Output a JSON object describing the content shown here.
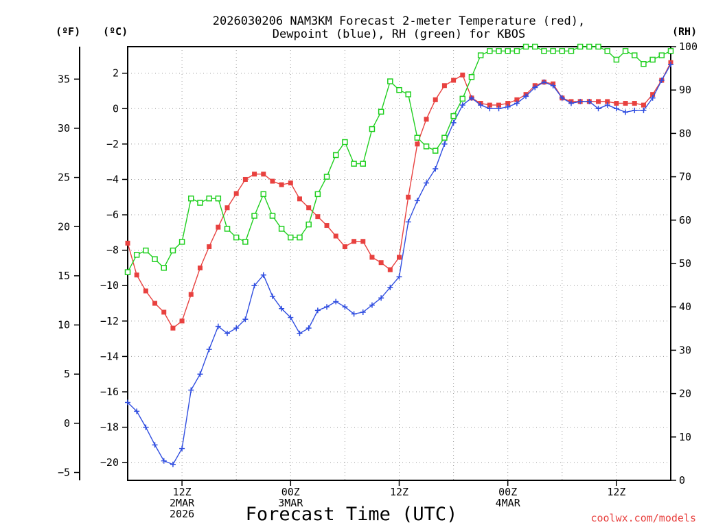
{
  "chart_data": {
    "type": "line",
    "title_line1": "2026030206 NAM3KM Forecast 2-meter Temperature (red),",
    "title_line2": "Dewpoint (blue), RH (green) for KBOS",
    "xlabel": "Forecast Time (UTC)",
    "credit": "coolwx.com/models",
    "units": {
      "fahrenheit": "(ºF)",
      "celsius": "(ºC)",
      "rh": "(RH)"
    },
    "x_range_hours": [
      6,
      66
    ],
    "c_range": [
      -21,
      3.5
    ],
    "rh_range": [
      0,
      100
    ],
    "c_ticks": [
      "2",
      "0",
      "−2",
      "−4",
      "−6",
      "−8",
      "−10",
      "−12",
      "−14",
      "−16",
      "−18",
      "−20"
    ],
    "c_tick_values": [
      2,
      0,
      -2,
      -4,
      -6,
      -8,
      -10,
      -12,
      -14,
      -16,
      -18,
      -20
    ],
    "f_ticks": [
      "35",
      "30",
      "25",
      "20",
      "15",
      "10",
      "5",
      "0",
      "−5"
    ],
    "f_tick_values": [
      35,
      30,
      25,
      20,
      15,
      10,
      5,
      0,
      -5
    ],
    "rh_ticks": [
      "100",
      "90",
      "80",
      "70",
      "60",
      "50",
      "40",
      "30",
      "20",
      "10",
      "0"
    ],
    "rh_tick_values": [
      100,
      90,
      80,
      70,
      60,
      50,
      40,
      30,
      20,
      10,
      0
    ],
    "x_ticks": [
      {
        "hour": 12,
        "lines": [
          "12Z",
          "2MAR",
          "2026"
        ]
      },
      {
        "hour": 24,
        "lines": [
          "00Z"
        ]
      },
      {
        "hour": 24,
        "lines": [
          "",
          "3MAR"
        ]
      },
      {
        "hour": 36,
        "lines": [
          "12Z"
        ]
      },
      {
        "hour": 48,
        "lines": [
          "00Z",
          "4MAR"
        ]
      },
      {
        "hour": 60,
        "lines": [
          "12Z"
        ]
      }
    ],
    "series": [
      {
        "name": "2-meter Temperature",
        "color": "#e8413f",
        "marker": "filled-square",
        "axis": "celsius",
        "values": [
          -7.6,
          -9.4,
          -10.3,
          -11.0,
          -11.5,
          -12.4,
          -12.0,
          -10.5,
          -9.0,
          -7.8,
          -6.7,
          -5.6,
          -4.8,
          -4.0,
          -3.7,
          -3.7,
          -4.1,
          -4.3,
          -4.2,
          -5.1,
          -5.6,
          -6.1,
          -6.6,
          -7.2,
          -7.8,
          -7.5,
          -7.5,
          -8.4,
          -8.7,
          -9.1,
          -8.4,
          -5.0,
          -2.0,
          -0.6,
          0.5,
          1.3,
          1.6,
          1.9,
          0.6,
          0.3,
          0.2,
          0.2,
          0.3,
          0.5,
          0.8,
          1.3,
          1.5,
          1.4,
          0.6,
          0.4,
          0.4,
          0.4,
          0.4,
          0.4,
          0.3,
          0.3,
          0.3,
          0.2,
          0.8,
          1.6,
          2.6
        ]
      },
      {
        "name": "Dewpoint",
        "color": "#2f4de0",
        "marker": "plus",
        "axis": "celsius",
        "values": [
          -16.6,
          -17.1,
          -18.0,
          -19.0,
          -19.9,
          -20.1,
          -19.2,
          -15.9,
          -15.0,
          -13.6,
          -12.3,
          -12.7,
          -12.4,
          -11.9,
          -10.0,
          -9.4,
          -10.6,
          -11.3,
          -11.8,
          -12.7,
          -12.4,
          -11.4,
          -11.2,
          -10.9,
          -11.2,
          -11.6,
          -11.5,
          -11.1,
          -10.7,
          -10.1,
          -9.5,
          -6.4,
          -5.2,
          -4.2,
          -3.4,
          -2.0,
          -0.8,
          0.2,
          0.6,
          0.2,
          0.0,
          0.0,
          0.1,
          0.3,
          0.7,
          1.2,
          1.5,
          1.3,
          0.6,
          0.3,
          0.4,
          0.4,
          0.0,
          0.2,
          0.0,
          -0.2,
          -0.1,
          -0.1,
          0.6,
          1.6,
          2.5
        ]
      },
      {
        "name": "RH",
        "color": "#1fcf1f",
        "marker": "open-square",
        "axis": "rh",
        "values": [
          48,
          52,
          53,
          51,
          49,
          53,
          55,
          65,
          64,
          65,
          65,
          58,
          56,
          55,
          61,
          66,
          61,
          58,
          56,
          56,
          59,
          66,
          70,
          75,
          78,
          73,
          73,
          81,
          85,
          92,
          90,
          89,
          79,
          77,
          76,
          79,
          84,
          88,
          93,
          98,
          99,
          99,
          99,
          99,
          100,
          100,
          99,
          99,
          99,
          99,
          100,
          100,
          100,
          99,
          97,
          99,
          98,
          96,
          97,
          98,
          99
        ]
      }
    ]
  }
}
